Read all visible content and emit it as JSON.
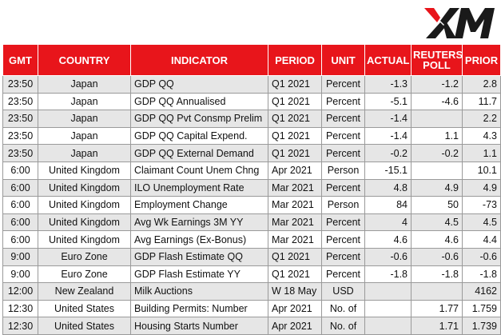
{
  "brand": {
    "logo_text": "XM",
    "accent": "#e8151b"
  },
  "columns": {
    "gmt": "GMT",
    "country": "COUNTRY",
    "indicator": "INDICATOR",
    "period": "PERIOD",
    "unit": "UNIT",
    "actual": "ACTUAL",
    "reuters_poll": "REUTERS POLL",
    "prior": "PRIOR"
  },
  "rows": [
    {
      "gmt": "23:50",
      "country": "Japan",
      "indicator": "GDP QQ",
      "period": "Q1 2021",
      "unit": "Percent",
      "actual": "-1.3",
      "poll": "-1.2",
      "prior": "2.8"
    },
    {
      "gmt": "23:50",
      "country": "Japan",
      "indicator": "GDP QQ Annualised",
      "period": "Q1 2021",
      "unit": "Percent",
      "actual": "-5.1",
      "poll": "-4.6",
      "prior": "11.7"
    },
    {
      "gmt": "23:50",
      "country": "Japan",
      "indicator": "GDP QQ Pvt Consmp Prelim",
      "period": "Q1 2021",
      "unit": "Percent",
      "actual": "-1.4",
      "poll": "",
      "prior": "2.2"
    },
    {
      "gmt": "23:50",
      "country": "Japan",
      "indicator": "GDP QQ Capital Expend.",
      "period": "Q1 2021",
      "unit": "Percent",
      "actual": "-1.4",
      "poll": "1.1",
      "prior": "4.3"
    },
    {
      "gmt": "23:50",
      "country": "Japan",
      "indicator": "GDP QQ External Demand",
      "period": "Q1 2021",
      "unit": "Percent",
      "actual": "-0.2",
      "poll": "-0.2",
      "prior": "1.1"
    },
    {
      "gmt": "6:00",
      "country": "United Kingdom",
      "indicator": "Claimant Count Unem Chng",
      "period": "Apr 2021",
      "unit": "Person",
      "actual": "-15.1",
      "poll": "",
      "prior": "10.1"
    },
    {
      "gmt": "6:00",
      "country": "United Kingdom",
      "indicator": "ILO Unemployment Rate",
      "period": "Mar 2021",
      "unit": "Percent",
      "actual": "4.8",
      "poll": "4.9",
      "prior": "4.9"
    },
    {
      "gmt": "6:00",
      "country": "United Kingdom",
      "indicator": "Employment Change",
      "period": "Mar 2021",
      "unit": "Person",
      "actual": "84",
      "poll": "50",
      "prior": "-73"
    },
    {
      "gmt": "6:00",
      "country": "United Kingdom",
      "indicator": "Avg Wk Earnings 3M YY",
      "period": "Mar 2021",
      "unit": "Percent",
      "actual": "4",
      "poll": "4.5",
      "prior": "4.5"
    },
    {
      "gmt": "6:00",
      "country": "United Kingdom",
      "indicator": "Avg Earnings (Ex-Bonus)",
      "period": "Mar 2021",
      "unit": "Percent",
      "actual": "4.6",
      "poll": "4.6",
      "prior": "4.4"
    },
    {
      "gmt": "9:00",
      "country": "Euro Zone",
      "indicator": "GDP Flash Estimate QQ",
      "period": "Q1 2021",
      "unit": "Percent",
      "actual": "-0.6",
      "poll": "-0.6",
      "prior": "-0.6"
    },
    {
      "gmt": "9:00",
      "country": "Euro Zone",
      "indicator": "GDP Flash Estimate YY",
      "period": "Q1 2021",
      "unit": "Percent",
      "actual": "-1.8",
      "poll": "-1.8",
      "prior": "-1.8"
    },
    {
      "gmt": "12:00",
      "country": "New Zealand",
      "indicator": "Milk Auctions",
      "period": "W 18 May",
      "unit": "USD",
      "actual": "",
      "poll": "",
      "prior": "4162"
    },
    {
      "gmt": "12:30",
      "country": "United States",
      "indicator": "Building Permits: Number",
      "period": "Apr 2021",
      "unit": "No. of",
      "actual": "",
      "poll": "1.77",
      "prior": "1.759"
    },
    {
      "gmt": "12:30",
      "country": "United States",
      "indicator": "Housing Starts Number",
      "period": "Apr 2021",
      "unit": "No. of",
      "actual": "",
      "poll": "1.71",
      "prior": "1.739"
    }
  ]
}
